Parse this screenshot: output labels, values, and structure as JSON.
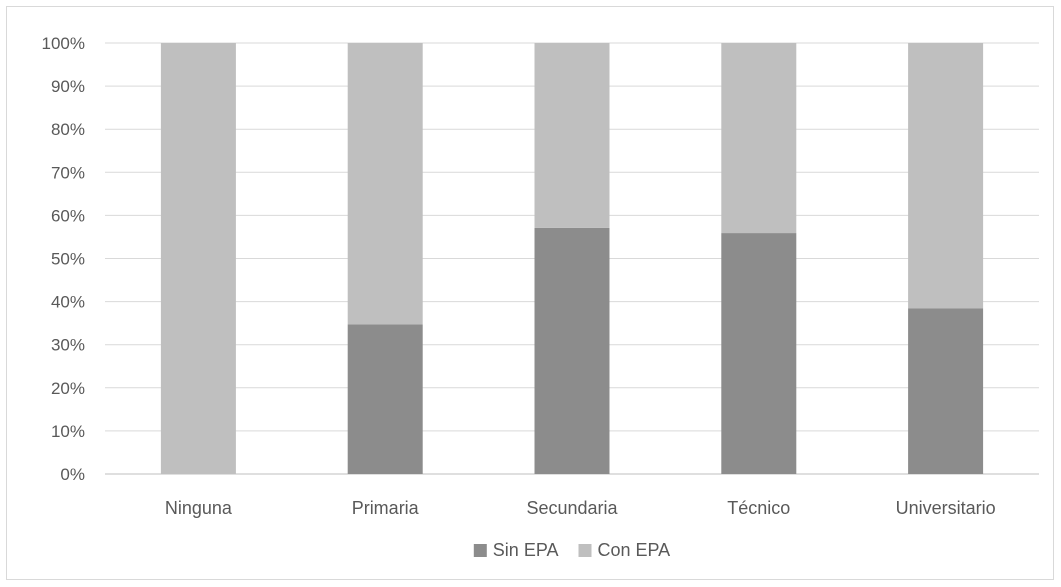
{
  "chart_data": {
    "type": "bar",
    "stacked": true,
    "percent": true,
    "categories": [
      "Ninguna",
      "Primaria",
      "Secundaria",
      "Técnico",
      "Universitario"
    ],
    "series": [
      {
        "name": "Sin EPA",
        "values": [
          0,
          34.7,
          57.1,
          55.9,
          38.4
        ],
        "color": "#8c8c8c"
      },
      {
        "name": "Con EPA",
        "values": [
          100,
          65.3,
          42.9,
          44.1,
          61.6
        ],
        "color": "#bfbfbf"
      }
    ],
    "y_ticks": [
      "0%",
      "10%",
      "20%",
      "30%",
      "40%",
      "50%",
      "60%",
      "70%",
      "80%",
      "90%",
      "100%"
    ],
    "ylim": [
      0,
      100
    ],
    "grid": true,
    "legend_position": "bottom"
  }
}
